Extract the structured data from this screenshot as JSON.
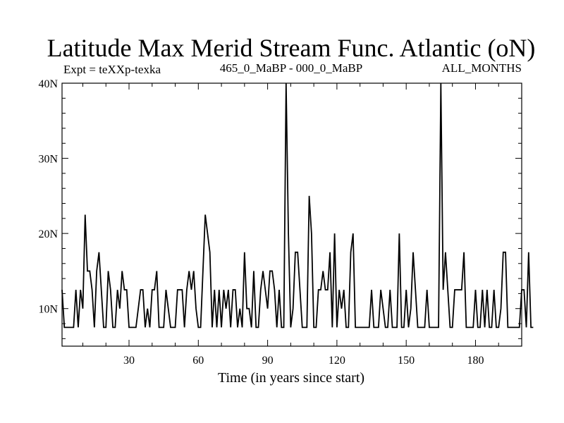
{
  "chart_data": {
    "type": "line",
    "title": "Latitude Max Merid Stream Func. Atlantic (oN)",
    "subtitle_left": "Expt = teXXp-texka",
    "subtitle_center": "465_0_MaBP - 000_0_MaBP",
    "subtitle_right": "ALL_MONTHS",
    "xlabel": "Time (in years since start)",
    "ylabel": "",
    "xlim": [
      1,
      200
    ],
    "ylim": [
      5,
      40
    ],
    "xticks": [
      30,
      60,
      90,
      120,
      150,
      180
    ],
    "xtick_labels": [
      "30",
      "60",
      "90",
      "120",
      "150",
      "180"
    ],
    "yticks": [
      10,
      20,
      30,
      40
    ],
    "ytick_labels": [
      "10N",
      "20N",
      "30N",
      "40N"
    ],
    "grid": false,
    "series": [
      {
        "values": [
          12.5,
          7.5,
          7.5,
          7.5,
          7.5,
          7.5,
          12.5,
          7.5,
          12.5,
          10,
          22.5,
          15,
          15,
          12.5,
          7.5,
          15,
          17.5,
          12.5,
          7.5,
          7.5,
          15,
          12.5,
          7.5,
          7.5,
          12.5,
          10,
          15,
          12.5,
          12.5,
          7.5,
          7.5,
          7.5,
          7.5,
          10,
          12.5,
          12.5,
          7.5,
          10,
          7.5,
          12.5,
          12.5,
          15,
          7.5,
          7.5,
          7.5,
          12.5,
          10,
          7.5,
          7.5,
          7.5,
          12.5,
          12.5,
          12.5,
          7.5,
          12.5,
          15,
          12.5,
          15,
          10,
          7.5,
          7.5,
          15,
          22.5,
          20,
          17.5,
          7.5,
          12.5,
          7.5,
          12.5,
          7.5,
          12.5,
          10,
          12.5,
          7.5,
          12.5,
          12.5,
          7.5,
          10,
          7.5,
          17.5,
          10,
          10,
          7.5,
          15,
          7.5,
          7.5,
          12.5,
          15,
          12.5,
          10,
          15,
          15,
          12.5,
          7.5,
          12.5,
          7.5,
          7.5,
          40,
          20,
          7.5,
          10,
          17.5,
          17.5,
          12.5,
          7.5,
          7.5,
          7.5,
          25,
          20,
          7.5,
          7.5,
          12.5,
          12.5,
          15,
          12.5,
          12.5,
          17.5,
          7.5,
          20,
          7.5,
          12.5,
          10,
          12.5,
          7.5,
          7.5,
          17.5,
          20,
          7.5,
          7.5,
          7.5,
          7.5,
          7.5,
          7.5,
          7.5,
          12.5,
          7.5,
          7.5,
          7.5,
          12.5,
          10,
          7.5,
          7.5,
          12.5,
          7.5,
          7.5,
          7.5,
          20,
          7.5,
          7.5,
          12.5,
          7.5,
          10,
          17.5,
          12.5,
          7.5,
          7.5,
          7.5,
          7.5,
          12.5,
          7.5,
          7.5,
          7.5,
          7.5,
          7.5,
          40,
          12.5,
          17.5,
          12.5,
          7.5,
          7.5,
          12.5,
          12.5,
          12.5,
          12.5,
          17.5,
          7.5,
          7.5,
          7.5,
          7.5,
          12.5,
          7.5,
          7.5,
          12.5,
          7.5,
          12.5,
          7.5,
          7.5,
          12.5,
          7.5,
          7.5,
          10,
          17.5,
          17.5,
          7.5,
          7.5,
          7.5,
          7.5,
          7.5,
          7.5,
          12.5,
          12.5,
          7.5,
          17.5,
          7.5,
          7.5
        ]
      }
    ]
  }
}
